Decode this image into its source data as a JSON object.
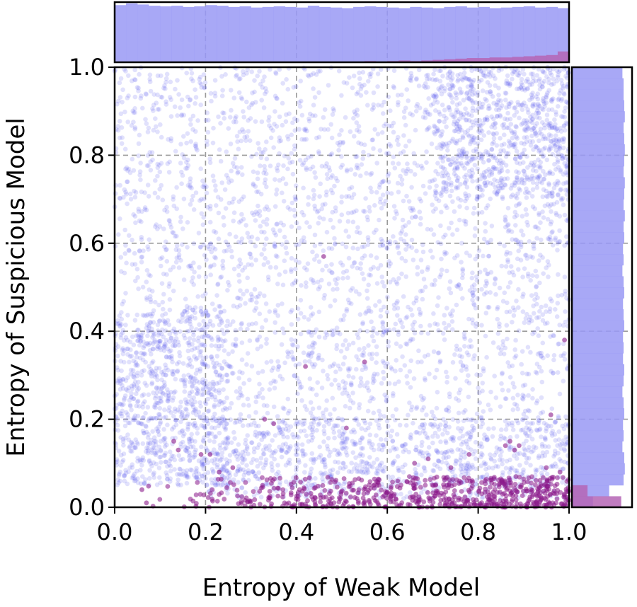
{
  "chart_data": {
    "type": "scatter",
    "title": "",
    "xlabel": "Entropy of Weak Model",
    "ylabel": "Entropy of Suspicious Model",
    "xlim": [
      0.0,
      1.0
    ],
    "ylim": [
      0.0,
      1.0
    ],
    "x_ticks": [
      "0.0",
      "0.2",
      "0.4",
      "0.6",
      "0.8",
      "1.0"
    ],
    "y_ticks": [
      "0.0",
      "0.2",
      "0.4",
      "0.6",
      "0.8",
      "1.0"
    ],
    "grid": true,
    "grid_style": "dashed",
    "legend": "none",
    "marginal_histograms": [
      "top",
      "right"
    ],
    "colors": {
      "majority": "#5b5bf0",
      "majority_hist": "#9999f5",
      "minority": "#8b1a8b",
      "minority_hist": "#b565b5",
      "grid": "#9a9a9a"
    },
    "series": [
      {
        "role": "majority",
        "description_of_distribution": "dense uniform cloud across full square, denser near (0,0.1) and (1,1)",
        "density_regions": [
          {
            "x_range": [
              0.0,
              1.0
            ],
            "y_range": [
              0.05,
              1.0
            ],
            "weight": 0.62
          },
          {
            "x_range": [
              0.0,
              0.25
            ],
            "y_range": [
              0.05,
              0.45
            ],
            "weight": 0.13
          },
          {
            "x_range": [
              0.7,
              1.0
            ],
            "y_range": [
              0.7,
              1.0
            ],
            "weight": 0.12
          },
          {
            "x_range": [
              0.2,
              1.0
            ],
            "y_range": [
              0.02,
              0.2
            ],
            "weight": 0.13
          }
        ],
        "marginal_x_hist": [
          0.95,
          0.98,
          0.96,
          0.94,
          0.93,
          0.94,
          0.92,
          0.93,
          0.95,
          0.94,
          0.92,
          0.93,
          0.91,
          0.92,
          0.93,
          0.92,
          0.91,
          0.94,
          0.92,
          0.91,
          0.9,
          0.92,
          0.93,
          0.92,
          0.91,
          0.9,
          0.92,
          0.91,
          0.9,
          0.92,
          0.93,
          0.91,
          0.92,
          0.9,
          0.91,
          0.92,
          0.93,
          0.91,
          0.92,
          0.9
        ],
        "marginal_y_hist": [
          0.35,
          0.62,
          0.86,
          0.88,
          0.87,
          0.84,
          0.86,
          0.85,
          0.87,
          0.86,
          0.84,
          0.86,
          0.87,
          0.85,
          0.86,
          0.85,
          0.87,
          0.86,
          0.85,
          0.87,
          0.86,
          0.84,
          0.86,
          0.85,
          0.87,
          0.86,
          0.88,
          0.86,
          0.87,
          0.88,
          0.86,
          0.87,
          0.88,
          0.87,
          0.86,
          0.88,
          0.87,
          0.86,
          0.86,
          0.84
        ]
      },
      {
        "role": "minority",
        "description_of_distribution": "concentrated near y=0, increasing toward x=1, a few scattered up to y=0.57",
        "points_sample": [
          [
            0.46,
            0.57
          ],
          [
            0.55,
            0.33
          ],
          [
            0.42,
            0.32
          ],
          [
            0.99,
            0.38
          ],
          [
            0.51,
            0.18
          ],
          [
            0.96,
            0.21
          ],
          [
            0.35,
            0.19
          ],
          [
            0.33,
            0.2
          ],
          [
            0.13,
            0.15
          ],
          [
            0.14,
            0.13
          ],
          [
            0.21,
            0.12
          ],
          [
            0.19,
            0.12
          ],
          [
            0.87,
            0.15
          ],
          [
            0.88,
            0.13
          ],
          [
            0.86,
            0.14
          ],
          [
            0.89,
            0.14
          ],
          [
            0.23,
            0.08
          ],
          [
            0.26,
            0.09
          ],
          [
            0.69,
            0.11
          ],
          [
            0.78,
            0.12
          ],
          [
            0.74,
            0.09
          ],
          [
            0.66,
            0.1
          ],
          [
            0.95,
            0.09
          ],
          [
            0.98,
            0.08
          ],
          [
            0.06,
            0.04
          ],
          [
            0.07,
            0.01
          ]
        ],
        "dense_band": {
          "x_range": [
            0.05,
            1.0
          ],
          "y_range": [
            0.0,
            0.07
          ],
          "weight_increasing_toward_x": 1.0
        },
        "marginal_x_hist": [
          0.0,
          0.0,
          0.0,
          0.0,
          0.0,
          0.0,
          0.0,
          0.0,
          0.0,
          0.0,
          0.0,
          0.0,
          0.0,
          0.0,
          0.0,
          0.0,
          0.0,
          0.0,
          0.0,
          0.0,
          0.0,
          0.0,
          0.02,
          0.0,
          0.02,
          0.03,
          0.02,
          0.03,
          0.04,
          0.05,
          0.06,
          0.07,
          0.07,
          0.08,
          0.08,
          0.09,
          0.1,
          0.11,
          0.12,
          0.18
        ],
        "marginal_y_hist": [
          0.82,
          0.26,
          0.0,
          0.0,
          0.0,
          0.0,
          0.0,
          0.0,
          0.0,
          0.0,
          0.0,
          0.0,
          0.0,
          0.0,
          0.0,
          0.0,
          0.0,
          0.0,
          0.0,
          0.0,
          0.0,
          0.0,
          0.0,
          0.0,
          0.0,
          0.0,
          0.0,
          0.0,
          0.0,
          0.0,
          0.0,
          0.0,
          0.0,
          0.0,
          0.0,
          0.0,
          0.0,
          0.0,
          0.0,
          0.0
        ]
      }
    ]
  }
}
